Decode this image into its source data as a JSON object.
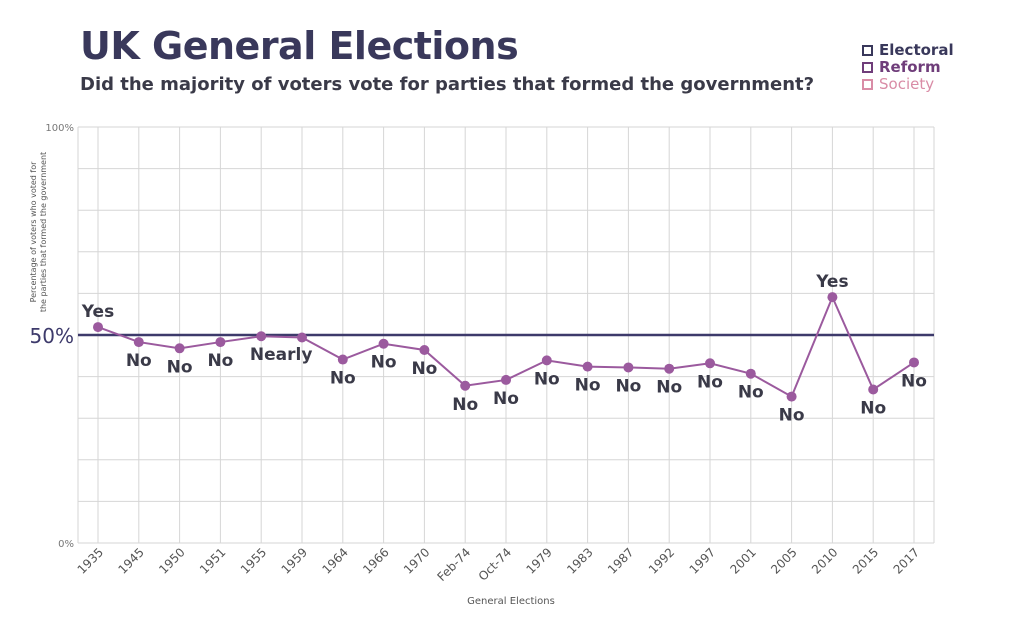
{
  "chart_data": {
    "type": "line",
    "title": "UK General Elections",
    "subtitle": "Did the majority of voters vote for parties that formed the government?",
    "xlabel": "General Elections",
    "ylabel": "Percentage of voters who voted for the parties that formed the government",
    "ylim": [
      0,
      100
    ],
    "y_ticks": [
      {
        "value": 0,
        "label": "0%"
      },
      {
        "value": 50,
        "label": "50%"
      },
      {
        "value": 100,
        "label": "100%"
      }
    ],
    "grid": true,
    "reference_line": {
      "value": 50,
      "color": "#3d3a6b"
    },
    "categories": [
      "1935",
      "1945",
      "1950",
      "1951",
      "1955",
      "1959",
      "1964",
      "1966",
      "1970",
      "Feb-74",
      "Oct-74",
      "1979",
      "1983",
      "1987",
      "1992",
      "1997",
      "2001",
      "2005",
      "2010",
      "2015",
      "2017"
    ],
    "series": [
      {
        "color": "#9b5a9e",
        "values": [
          51.9,
          48.3,
          46.8,
          48.3,
          49.7,
          49.4,
          44.1,
          47.9,
          46.4,
          37.8,
          39.2,
          43.9,
          42.4,
          42.2,
          41.9,
          43.2,
          40.7,
          35.2,
          59.1,
          36.9,
          43.4
        ],
        "annotations": [
          "Yes",
          "No",
          "No",
          "No",
          "Nearly",
          "",
          "No",
          "No",
          "No",
          "No",
          "No",
          "No",
          "No",
          "No",
          "No",
          "No",
          "No",
          "No",
          "Yes",
          "No",
          "No"
        ]
      }
    ]
  },
  "logo": {
    "items": [
      {
        "text": "Electoral",
        "color": "#39385b",
        "weight": "bold"
      },
      {
        "text": "Reform",
        "color": "#6f3d7a",
        "weight": "bold"
      },
      {
        "text": "Society",
        "color": "#d98ca6",
        "weight": "normal"
      }
    ]
  }
}
